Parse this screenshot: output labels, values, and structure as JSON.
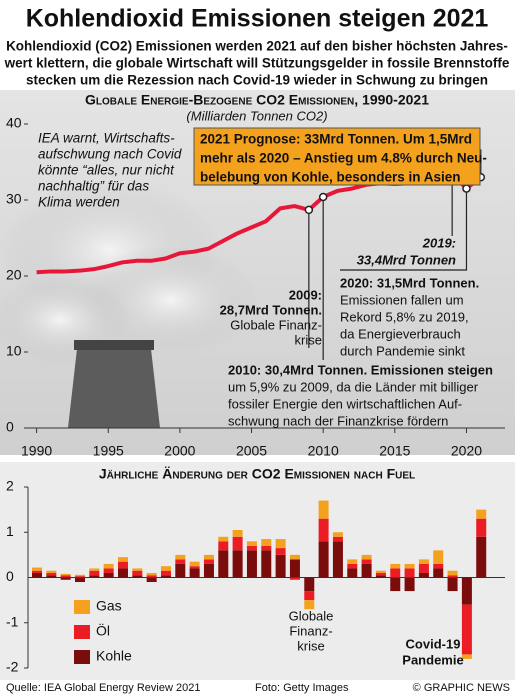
{
  "header": {
    "title": "Kohlendioxid Emissionen steigen 2021",
    "subtitle": [
      "Kohlendioxid (CO2) Emissionen werden 2021 auf den bisher höchsten Jahres-",
      "wert klettern, die globale Wirtschaft will Stützungsgelder in fossile Brennstoffe",
      "stecken um die Rezession nach Covid-19 wieder in Schwung zu bringen"
    ]
  },
  "chart_data": [
    {
      "type": "line",
      "title": "Globale Energie-Bezogene CO2 Emissionen, 1990-2021",
      "subtitle": "(Milliarden Tonnen CO2)",
      "x": [
        1990,
        1991,
        1992,
        1993,
        1994,
        1995,
        1996,
        1997,
        1998,
        1999,
        2000,
        2001,
        2002,
        2003,
        2004,
        2005,
        2006,
        2007,
        2008,
        2009,
        2010,
        2011,
        2012,
        2013,
        2014,
        2015,
        2016,
        2017,
        2018,
        2019,
        2020,
        2021
      ],
      "values": [
        20.5,
        20.6,
        20.6,
        20.7,
        20.9,
        21.3,
        21.8,
        22.0,
        22.0,
        22.3,
        23.0,
        23.2,
        23.6,
        24.6,
        25.6,
        26.4,
        27.2,
        28.9,
        29.2,
        28.7,
        30.4,
        31.2,
        31.5,
        32.0,
        32.2,
        32.1,
        32.2,
        32.6,
        33.4,
        33.4,
        31.5,
        33.0
      ],
      "color": "#e8173a",
      "xlim": [
        1989.4,
        2022.2
      ],
      "xticks": [
        1990,
        1995,
        2000,
        2005,
        2010,
        2015,
        2020
      ],
      "ylim": [
        0,
        40
      ],
      "yticks": [
        0,
        10,
        20,
        30,
        40
      ],
      "annotations": [
        {
          "lines": [
            "IEA warnt, Wirtschafts-",
            "aufschwung nach Covid",
            "könnte “alles, nur nicht",
            "nachhaltig” für das",
            "Klima werden"
          ]
        },
        {
          "lines": [
            "2021 Prognose: 33Mrd Tonnen. Um 1,5Mrd",
            "mehr als 2020 – Anstieg um 4.8% durch Neu-",
            "belebung von Kohle, besonders in Asien"
          ]
        },
        {
          "lines": [
            "2019:",
            "33,4Mrd Tonnen"
          ]
        },
        {
          "lines": [
            "2020: 31,5Mrd Tonnen.",
            "Emissionen fallen um",
            "Rekord 5,8% zu 2019,",
            "da Energieverbrauch",
            "durch Pandemie sinkt"
          ]
        },
        {
          "lines": [
            "2009:",
            "28,7Mrd Tonnen.",
            "Globale Finanz-",
            "krise"
          ]
        },
        {
          "lines": [
            "2010: 30,4Mrd Tonnen. Emissionen steigen",
            "um 5,9% zu 2009, da die Länder mit billiger",
            "fossiler Energie den wirtschaftlichen Auf-",
            "schwung nach der Finanzkrise fördern"
          ]
        }
      ]
    },
    {
      "type": "bar",
      "stacked": true,
      "title": "Jährliche Änderung der CO2 Emissionen nach Fuel",
      "ylim": [
        -2,
        2
      ],
      "yticks": [
        -2,
        -1,
        0,
        1,
        2
      ],
      "series": [
        {
          "name": "Gas",
          "color": "#f4a21e",
          "values": [
            0.07,
            0.05,
            0.03,
            0.03,
            0.05,
            0.1,
            0.1,
            0.05,
            0.05,
            0.1,
            0.1,
            0.1,
            0.1,
            0.1,
            0.15,
            0.1,
            0.15,
            0.2,
            0.1,
            -0.2,
            0.4,
            0.1,
            0.1,
            0.1,
            0.05,
            0.1,
            0.1,
            0.1,
            0.3,
            0.1,
            -0.1,
            0.2
          ]
        },
        {
          "name": "Öl",
          "color": "#ec1c24",
          "values": [
            0.05,
            0.05,
            0.05,
            0.03,
            0.1,
            0.1,
            0.15,
            0.1,
            0.05,
            0.1,
            0.1,
            0.05,
            0.1,
            0.2,
            0.3,
            0.1,
            0.1,
            0.15,
            -0.05,
            -0.2,
            0.5,
            0.1,
            0.1,
            0.1,
            0.05,
            0.2,
            0.2,
            0.2,
            0.1,
            0.05,
            -1.1,
            0.4
          ]
        },
        {
          "name": "Kohle",
          "color": "#7a0c0c",
          "values": [
            0.1,
            0.05,
            -0.05,
            -0.1,
            0.05,
            0.1,
            0.2,
            0.05,
            -0.1,
            0.05,
            0.3,
            0.2,
            0.3,
            0.6,
            0.6,
            0.6,
            0.6,
            0.5,
            0.4,
            -0.3,
            0.8,
            0.8,
            0.2,
            0.3,
            0.05,
            -0.3,
            -0.3,
            0.1,
            0.2,
            -0.3,
            -0.6,
            0.9
          ]
        }
      ],
      "annotations": [
        {
          "lines": [
            "Globale",
            "Finanz-",
            "krise"
          ]
        },
        {
          "lines": [
            "Covid-19",
            "Pandemie"
          ]
        }
      ]
    }
  ],
  "footer": {
    "source": "Quelle: IEA Global Energy Review 2021",
    "photo": "Foto: Getty Images",
    "credit": "© GRAPHIC NEWS"
  }
}
